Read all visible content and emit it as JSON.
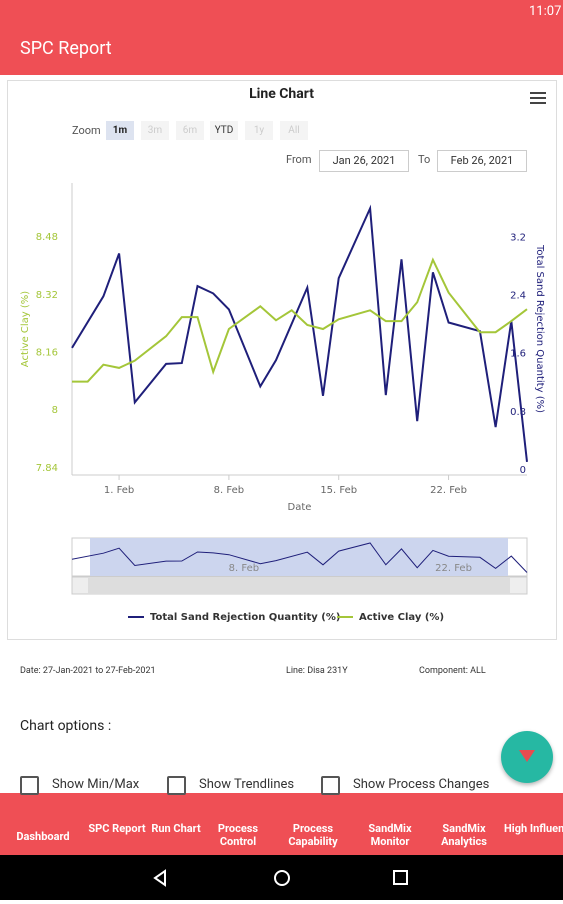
{
  "status_bar": {
    "time": "11:07"
  },
  "app_bar": {
    "title": "SPC Report"
  },
  "chart_controls": {
    "zoom_label": "Zoom",
    "zoom_options": [
      "1m",
      "3m",
      "6m",
      "YTD",
      "1y",
      "All"
    ],
    "from_label": "From",
    "from_date": "Jan 26, 2021",
    "to_label": "To",
    "to_date": "Feb 26, 2021"
  },
  "chart_data": {
    "type": "line",
    "title": "Line Chart",
    "x_label": "Date",
    "y_label": "Active Clay (%)",
    "y2_label": "Total Sand Rejection Quantity (%)",
    "xlim": [
      "2021-01-29",
      "2021-02-27"
    ],
    "xticks": [
      {
        "value": "2021-02-01",
        "label": "1. Feb"
      },
      {
        "value": "2021-02-08",
        "label": "8. Feb"
      },
      {
        "value": "2021-02-15",
        "label": "15. Feb"
      },
      {
        "value": "2021-02-22",
        "label": "22. Feb"
      }
    ],
    "ylim": [
      7.82,
      8.63
    ],
    "yticks": [
      7.84,
      8,
      8.16,
      8.32,
      8.48
    ],
    "y2lim": [
      -0.07,
      3.95
    ],
    "y2ticks": [
      0,
      0.8,
      1.6,
      2.4,
      3.2
    ],
    "legend": "bottom",
    "series": [
      {
        "name": "Total Sand Rejection Quantity (%)",
        "color": "#1f1f7a",
        "axis": "y2",
        "x": [
          "2021-01-29",
          "2021-01-31",
          "2021-02-01",
          "2021-02-02",
          "2021-02-04",
          "2021-02-05",
          "2021-02-06",
          "2021-02-07",
          "2021-02-08",
          "2021-02-10",
          "2021-02-11",
          "2021-02-13",
          "2021-02-14",
          "2021-02-15",
          "2021-02-17",
          "2021-02-18",
          "2021-02-19",
          "2021-02-20",
          "2021-02-21",
          "2021-02-22",
          "2021-02-24",
          "2021-02-25",
          "2021-02-26",
          "2021-02-27"
        ],
        "values": [
          1.68,
          2.39,
          2.98,
          0.93,
          1.46,
          1.47,
          2.53,
          2.43,
          2.21,
          1.15,
          1.51,
          2.51,
          1.02,
          2.64,
          3.6,
          1.03,
          2.9,
          0.67,
          2.72,
          2.03,
          1.91,
          0.59,
          2.05,
          0.11
        ]
      },
      {
        "name": "Active Clay (%)",
        "color": "#a4c639",
        "axis": "y",
        "x": [
          "2021-01-29",
          "2021-01-30",
          "2021-01-31",
          "2021-02-01",
          "2021-02-02",
          "2021-02-04",
          "2021-02-05",
          "2021-02-06",
          "2021-02-07",
          "2021-02-08",
          "2021-02-10",
          "2021-02-11",
          "2021-02-12",
          "2021-02-13",
          "2021-02-14",
          "2021-02-15",
          "2021-02-17",
          "2021-02-18",
          "2021-02-19",
          "2021-02-20",
          "2021-02-21",
          "2021-02-22",
          "2021-02-24",
          "2021-02-25",
          "2021-02-26",
          "2021-02-27"
        ],
        "values": [
          8.079,
          8.079,
          8.126,
          8.117,
          8.137,
          8.205,
          8.258,
          8.258,
          8.106,
          8.225,
          8.288,
          8.249,
          8.277,
          8.236,
          8.225,
          8.252,
          8.277,
          8.247,
          8.247,
          8.299,
          8.417,
          8.326,
          8.216,
          8.216,
          8.247,
          8.28
        ]
      }
    ]
  },
  "info": {
    "date_range": "Date: 27-Jan-2021 to 27-Feb-2021",
    "line": "Line: Disa 231Y",
    "component": "Component: ALL"
  },
  "chart_options": {
    "title": "Chart options :",
    "checkboxes": [
      "Show Min/Max",
      "Show Trendlines",
      "Show Process Changes"
    ]
  },
  "bottom_nav": [
    "Dashboard",
    "SPC Report",
    "Run Chart",
    "Process Control",
    "Process Capability",
    "SandMix Monitor",
    "SandMix Analytics",
    "High Influence"
  ]
}
